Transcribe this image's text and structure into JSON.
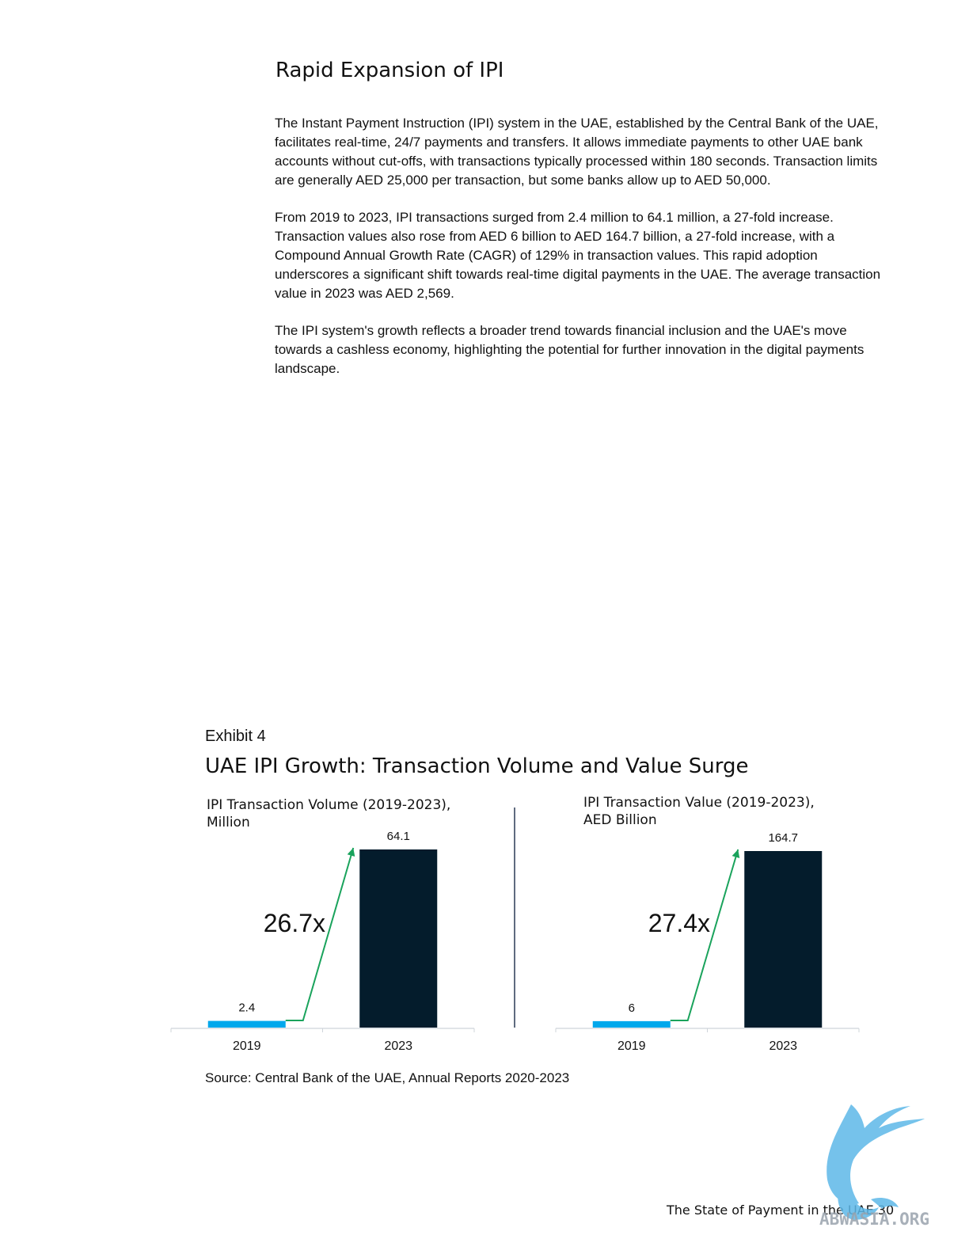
{
  "heading": "Rapid Expansion of IPI",
  "paragraphs": [
    "The Instant Payment Instruction (IPI) system in the UAE, established by the Central Bank of the UAE, facilitates real-time, 24/7 payments and transfers. It allows immediate payments to other UAE bank accounts without cut-offs, with transactions typically processed within 180 seconds. Transaction limits are generally AED 25,000 per transaction, but some banks allow up to AED 50,000.",
    "From 2019 to 2023, IPI transactions surged from 2.4 million to 64.1 million, a 27-fold increase. Transaction values also rose from AED 6 billion to AED 164.7 billion, a 27-fold increase, with a Compound Annual Growth Rate (CAGR) of 129% in transaction values. This rapid adoption underscores a significant shift towards real-time digital payments in the UAE. The average transaction value in 2023 was AED 2,569.",
    "The IPI system's growth reflects a broader trend towards financial inclusion and the UAE's move towards a cashless economy, highlighting the potential for further innovation in the digital payments landscape."
  ],
  "exhibit": {
    "label": "Exhibit 4",
    "title": "UAE IPI Growth: Transaction Volume and Value Surge"
  },
  "chart_data": [
    {
      "type": "bar",
      "title_lines": [
        "IPI Transaction Volume (2019-2023),",
        "Million"
      ],
      "categories": [
        "2019",
        "2023"
      ],
      "values": [
        2.4,
        64.1
      ],
      "value_labels": [
        "2.4",
        "64.1"
      ],
      "multiplier_label": "26.7x",
      "colors": [
        "#00a8ec",
        "#041c2c"
      ],
      "arrow_color": "#1aa35c",
      "xlabel": "",
      "ylabel": "",
      "ylim": [
        0,
        64.1
      ],
      "grid": false
    },
    {
      "type": "bar",
      "title_lines": [
        "IPI Transaction Value (2019-2023),",
        "AED Billion"
      ],
      "categories": [
        "2019",
        "2023"
      ],
      "values": [
        6,
        164.7
      ],
      "value_labels": [
        "6",
        "164.7"
      ],
      "multiplier_label": "27.4x",
      "colors": [
        "#00a8ec",
        "#041c2c"
      ],
      "arrow_color": "#1aa35c",
      "xlabel": "",
      "ylabel": "",
      "ylim": [
        0,
        164.7
      ],
      "grid": false
    }
  ],
  "source": "Source: Central Bank of the UAE, Annual Reports 2020-2023",
  "footer": {
    "text": "The State of Payment in the UAE",
    "page_number": "30"
  },
  "watermark": {
    "text": "ABWASIA.ORG",
    "logo_icon": "griffin-logo-icon",
    "color": "#5db8e8"
  }
}
